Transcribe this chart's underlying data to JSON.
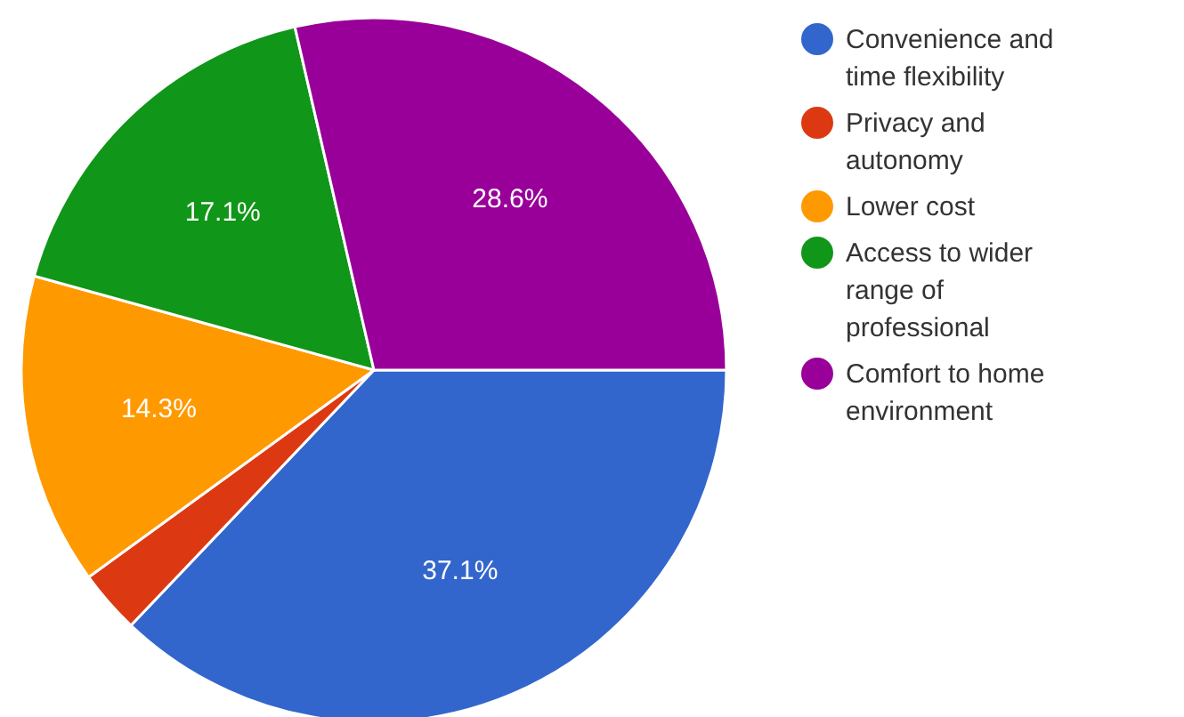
{
  "chart_data": {
    "type": "pie",
    "categories": [
      "Convenience and time flexibility",
      "Privacy and autonomy",
      "Lower cost",
      "Access to wider range of professional",
      "Comfort to home environment"
    ],
    "values": [
      37.1,
      2.9,
      14.3,
      17.1,
      28.6
    ],
    "colors": [
      "#3366cc",
      "#dc3912",
      "#ff9900",
      "#109618",
      "#990099"
    ],
    "value_labels": [
      "37.1%",
      null,
      "14.3%",
      "17.1%",
      "28.6%"
    ],
    "legend": "right"
  }
}
